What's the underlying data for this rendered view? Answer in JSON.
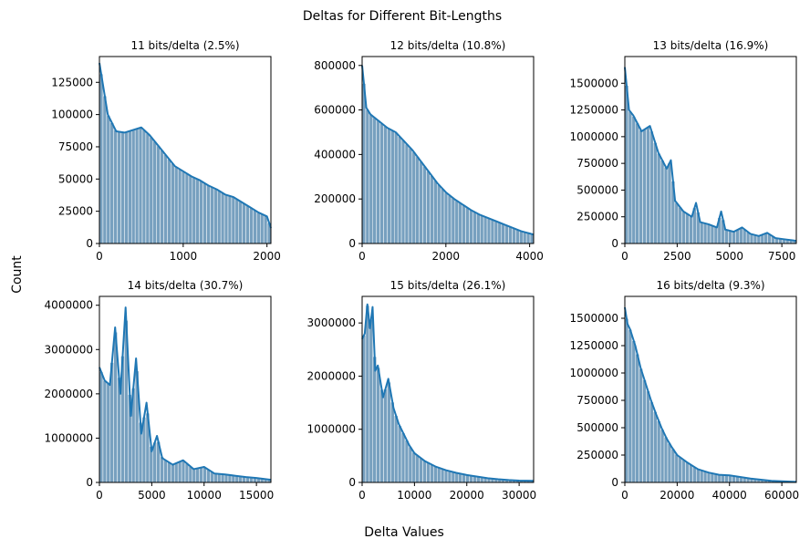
{
  "figure": {
    "suptitle": "Deltas for Different Bit-Lengths",
    "xlabel": "Delta Values",
    "ylabel": "Count"
  },
  "colors": {
    "bar": "#5f8fb4",
    "kde": "#1f77b4"
  },
  "chart_data": [
    {
      "type": "bar",
      "title": "11 bits/delta (2.5%)",
      "xlim": [
        0,
        2047
      ],
      "ylim": [
        0,
        145000
      ],
      "xticks": [
        0,
        1000,
        2000
      ],
      "yticks": [
        0,
        25000,
        50000,
        75000,
        100000,
        125000
      ],
      "x": [
        0,
        100,
        200,
        300,
        400,
        500,
        600,
        700,
        800,
        900,
        1000,
        1100,
        1200,
        1300,
        1400,
        1500,
        1600,
        1700,
        1800,
        1900,
        2000,
        2047
      ],
      "values": [
        140000,
        100000,
        87000,
        86000,
        88000,
        90000,
        84000,
        76000,
        68000,
        60000,
        56000,
        52000,
        49000,
        45000,
        42000,
        38000,
        36000,
        32000,
        28000,
        24000,
        21000,
        12000
      ]
    },
    {
      "type": "bar",
      "title": "12 bits/delta (10.8%)",
      "xlim": [
        0,
        4095
      ],
      "ylim": [
        0,
        840000
      ],
      "xticks": [
        0,
        2000,
        4000
      ],
      "yticks": [
        0,
        200000,
        400000,
        600000,
        800000
      ],
      "x": [
        0,
        100,
        200,
        400,
        600,
        800,
        1000,
        1200,
        1400,
        1600,
        1800,
        2000,
        2200,
        2400,
        2600,
        2800,
        3000,
        3200,
        3400,
        3600,
        3800,
        4000,
        4095
      ],
      "values": [
        800000,
        610000,
        580000,
        550000,
        520000,
        500000,
        460000,
        420000,
        370000,
        320000,
        270000,
        230000,
        200000,
        175000,
        150000,
        130000,
        115000,
        100000,
        85000,
        70000,
        55000,
        45000,
        40000
      ]
    },
    {
      "type": "bar",
      "title": "13 bits/delta (16.9%)",
      "xlim": [
        0,
        8191
      ],
      "ylim": [
        0,
        1750000
      ],
      "xticks": [
        0,
        2500,
        5000,
        7500
      ],
      "yticks": [
        0,
        250000,
        500000,
        750000,
        1000000,
        1250000,
        1500000
      ],
      "x": [
        0,
        200,
        400,
        800,
        1200,
        1600,
        2000,
        2200,
        2400,
        2800,
        3200,
        3400,
        3600,
        4000,
        4400,
        4600,
        4800,
        5200,
        5600,
        6000,
        6400,
        6800,
        7200,
        7600,
        8000,
        8191
      ],
      "values": [
        1650000,
        1250000,
        1200000,
        1050000,
        1100000,
        850000,
        700000,
        780000,
        400000,
        300000,
        250000,
        380000,
        200000,
        180000,
        150000,
        300000,
        130000,
        110000,
        150000,
        90000,
        70000,
        100000,
        50000,
        40000,
        30000,
        25000
      ]
    },
    {
      "type": "bar",
      "title": "14 bits/delta (30.7%)",
      "xlim": [
        0,
        16383
      ],
      "ylim": [
        0,
        4200000
      ],
      "xticks": [
        0,
        5000,
        10000,
        15000
      ],
      "yticks": [
        0,
        1000000,
        2000000,
        3000000,
        4000000
      ],
      "x": [
        0,
        500,
        1000,
        1500,
        2000,
        2500,
        3000,
        3500,
        4000,
        4500,
        5000,
        5500,
        6000,
        7000,
        8000,
        9000,
        10000,
        11000,
        12000,
        13000,
        14000,
        15000,
        16383
      ],
      "values": [
        2600000,
        2300000,
        2200000,
        3500000,
        2000000,
        3950000,
        1500000,
        2800000,
        1100000,
        1800000,
        700000,
        1050000,
        550000,
        400000,
        500000,
        300000,
        350000,
        200000,
        180000,
        150000,
        120000,
        100000,
        60000
      ]
    },
    {
      "type": "bar",
      "title": "15 bits/delta (26.1%)",
      "xlim": [
        0,
        32767
      ],
      "ylim": [
        0,
        3500000
      ],
      "xticks": [
        0,
        10000,
        20000,
        30000
      ],
      "yticks": [
        0,
        1000000,
        2000000,
        3000000
      ],
      "x": [
        0,
        500,
        1000,
        1500,
        2000,
        2500,
        3000,
        4000,
        5000,
        6000,
        7000,
        8000,
        9000,
        10000,
        12000,
        14000,
        16000,
        18000,
        20000,
        22000,
        24000,
        26000,
        28000,
        30000,
        32767
      ],
      "values": [
        2700000,
        2800000,
        3350000,
        2900000,
        3300000,
        2100000,
        2200000,
        1600000,
        1950000,
        1400000,
        1100000,
        900000,
        700000,
        550000,
        400000,
        300000,
        230000,
        180000,
        140000,
        110000,
        80000,
        60000,
        45000,
        35000,
        30000
      ]
    },
    {
      "type": "bar",
      "title": "16 bits/delta (9.3%)",
      "xlim": [
        0,
        65535
      ],
      "ylim": [
        0,
        1700000
      ],
      "xticks": [
        0,
        20000,
        40000,
        60000
      ],
      "yticks": [
        0,
        250000,
        500000,
        750000,
        1000000,
        1250000,
        1500000
      ],
      "x": [
        0,
        1000,
        2000,
        4000,
        6000,
        8000,
        10000,
        12000,
        14000,
        16000,
        18000,
        20000,
        24000,
        28000,
        32000,
        36000,
        40000,
        44000,
        48000,
        52000,
        56000,
        60000,
        65535
      ],
      "values": [
        1600000,
        1450000,
        1400000,
        1250000,
        1050000,
        900000,
        750000,
        620000,
        500000,
        400000,
        320000,
        250000,
        180000,
        120000,
        90000,
        70000,
        65000,
        50000,
        35000,
        25000,
        15000,
        10000,
        5000
      ]
    }
  ]
}
